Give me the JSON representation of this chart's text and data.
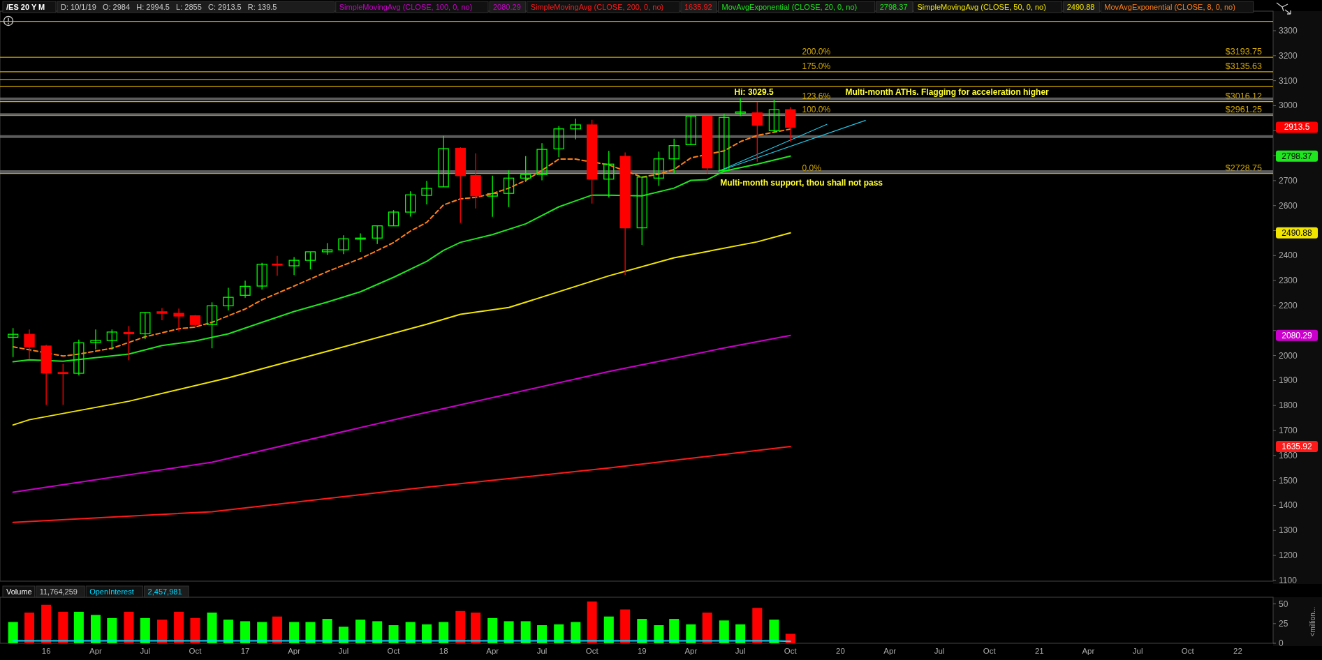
{
  "chart_data": [
    {
      "type": "candlestick",
      "title": "/ES 20 Y M",
      "legend": "top",
      "tick_labels": "y",
      "x": [
        "2015-11",
        "2015-12",
        "2016-01",
        "2016-02",
        "2016-03",
        "2016-04",
        "2016-05",
        "2016-06",
        "2016-07",
        "2016-08",
        "2016-09",
        "2016-10",
        "2016-11",
        "2016-12",
        "2017-01",
        "2017-02",
        "2017-03",
        "2017-04",
        "2017-05",
        "2017-06",
        "2017-07",
        "2017-08",
        "2017-09",
        "2017-10",
        "2017-11",
        "2017-12",
        "2018-01",
        "2018-02",
        "2018-03",
        "2018-04",
        "2018-05",
        "2018-06",
        "2018-07",
        "2018-08",
        "2018-09",
        "2018-10",
        "2018-11",
        "2018-12",
        "2019-01",
        "2019-02",
        "2019-03",
        "2019-04",
        "2019-05",
        "2019-06",
        "2019-07",
        "2019-08",
        "2019-09",
        "2019-10"
      ],
      "ohlc": [
        [
          2073,
          2110,
          1994,
          2085
        ],
        [
          2085,
          2104,
          1988,
          2035
        ],
        [
          2038,
          2043,
          1803,
          1930
        ],
        [
          1932,
          1967,
          1803,
          1929
        ],
        [
          1929,
          2064,
          1921,
          2051
        ],
        [
          2052,
          2104,
          2025,
          2060
        ],
        [
          2060,
          2104,
          2023,
          2094
        ],
        [
          2092,
          2118,
          1981,
          2087
        ],
        [
          2087,
          2172,
          2066,
          2172
        ],
        [
          2175,
          2190,
          2141,
          2169
        ],
        [
          2169,
          2188,
          2099,
          2158
        ],
        [
          2159,
          2162,
          2110,
          2124
        ],
        [
          2124,
          2213,
          2029,
          2199
        ],
        [
          2199,
          2271,
          2180,
          2233
        ],
        [
          2241,
          2300,
          2231,
          2277
        ],
        [
          2278,
          2371,
          2264,
          2365
        ],
        [
          2366,
          2399,
          2319,
          2362
        ],
        [
          2359,
          2394,
          2322,
          2381
        ],
        [
          2381,
          2415,
          2345,
          2415
        ],
        [
          2415,
          2450,
          2403,
          2423
        ],
        [
          2423,
          2481,
          2406,
          2467
        ],
        [
          2468,
          2489,
          2415,
          2470
        ],
        [
          2470,
          2519,
          2446,
          2519
        ],
        [
          2519,
          2582,
          2519,
          2574
        ],
        [
          2574,
          2657,
          2556,
          2643
        ],
        [
          2641,
          2699,
          2605,
          2669
        ],
        [
          2675,
          2879,
          2675,
          2828
        ],
        [
          2829,
          2834,
          2531,
          2720
        ],
        [
          2720,
          2809,
          2589,
          2639
        ],
        [
          2638,
          2720,
          2555,
          2648
        ],
        [
          2649,
          2741,
          2594,
          2710
        ],
        [
          2710,
          2798,
          2695,
          2724
        ],
        [
          2724,
          2850,
          2701,
          2825
        ],
        [
          2827,
          2918,
          2794,
          2907
        ],
        [
          2907,
          2948,
          2865,
          2923
        ],
        [
          2923,
          2943,
          2608,
          2706
        ],
        [
          2706,
          2819,
          2633,
          2766
        ],
        [
          2797,
          2813,
          2322,
          2511
        ],
        [
          2511,
          2714,
          2443,
          2714
        ],
        [
          2710,
          2816,
          2679,
          2787
        ],
        [
          2787,
          2868,
          2730,
          2840
        ],
        [
          2844,
          2958,
          2844,
          2958
        ],
        [
          2958,
          2958,
          2729,
          2751
        ],
        [
          2741,
          2968,
          2741,
          2953
        ],
        [
          2970,
          3029.5,
          2958,
          2975
        ],
        [
          2971,
          3015,
          2776,
          2922
        ],
        [
          2900,
          3024,
          2891,
          2984
        ],
        [
          2984,
          2994.5,
          2855,
          2913.5
        ]
      ],
      "value_labels": [
        null,
        null,
        null,
        null,
        null,
        null,
        null,
        null,
        null,
        null,
        null,
        null,
        null,
        null,
        null,
        null,
        null,
        null,
        null,
        null,
        null,
        null,
        null,
        null,
        null,
        null,
        null,
        null,
        null,
        null,
        null,
        null,
        null,
        null,
        null,
        null,
        null,
        null,
        null,
        null,
        null,
        null,
        null,
        null,
        null,
        null,
        null,
        "2913.5"
      ],
      "colors": [
        "#00ff00",
        "#ff0000",
        "#ff0000",
        "#ff0000",
        "#00ff00",
        "#00ff00",
        "#00ff00",
        "#ff0000",
        "#00ff00",
        "#ff0000",
        "#ff0000",
        "#ff0000",
        "#00ff00",
        "#00ff00",
        "#00ff00",
        "#00ff00",
        "#ff0000",
        "#00ff00",
        "#00ff00",
        "#00ff00",
        "#00ff00",
        "#00ff00",
        "#00ff00",
        "#00ff00",
        "#00ff00",
        "#00ff00",
        "#00ff00",
        "#ff0000",
        "#ff0000",
        "#00ff00",
        "#00ff00",
        "#00ff00",
        "#00ff00",
        "#00ff00",
        "#00ff00",
        "#ff0000",
        "#00ff00",
        "#ff0000",
        "#00ff00",
        "#00ff00",
        "#00ff00",
        "#00ff00",
        "#ff0000",
        "#00ff00",
        "#00ff00",
        "#ff0000",
        "#00ff00",
        "#ff0000"
      ],
      "series": [
        {
          "type": "line",
          "name": "SimpleMovingAvg (CLOSE, 100, 0, no)",
          "color": "#cc00cc",
          "x": [
            "2015-11",
            "2016-11",
            "2017-11",
            "2018-11",
            "2019-06",
            "2019-10"
          ],
          "values": [
            1453,
            1573,
            1758,
            1936,
            2030,
            2080.29
          ]
        },
        {
          "type": "line",
          "name": "SimpleMovingAvg (CLOSE, 200, 0, no)",
          "color": "#ff1a1a",
          "x": [
            "2015-11",
            "2016-11",
            "2017-11",
            "2018-11",
            "2019-10"
          ],
          "values": [
            1332,
            1375,
            1466,
            1550,
            1635.92
          ]
        },
        {
          "type": "line",
          "name": "MovAvgExponential (CLOSE, 20, 0, no)",
          "color": "#1fe61f",
          "x": [
            "2015-11",
            "2015-12",
            "2016-02",
            "2016-06",
            "2016-08",
            "2016-10",
            "2016-12",
            "2017-02",
            "2017-04",
            "2017-06",
            "2017-08",
            "2017-10",
            "2017-12",
            "2018-01",
            "2018-02",
            "2018-04",
            "2018-06",
            "2018-08",
            "2018-09",
            "2018-10",
            "2018-11",
            "2018-12",
            "2019-01",
            "2019-03",
            "2019-04",
            "2019-05",
            "2019-06",
            "2019-08",
            "2019-10"
          ],
          "values": [
            1975,
            1983,
            1977,
            2006,
            2040,
            2058,
            2087,
            2133,
            2176,
            2214,
            2255,
            2313,
            2377,
            2421,
            2453,
            2484,
            2527,
            2595,
            2619,
            2642,
            2642,
            null,
            2639,
            2670,
            2701,
            2704,
            2738,
            2766,
            2798.37
          ]
        },
        {
          "type": "line",
          "name": "SimpleMovingAvg (CLOSE, 50, 0, no)",
          "color": "#f2e600",
          "x": [
            "2015-11",
            "2015-12",
            "2016-06",
            "2016-12",
            "2017-06",
            "2017-12",
            "2018-02",
            "2018-05",
            "2018-11",
            "2019-03",
            "2019-08",
            "2019-10"
          ],
          "values": [
            1722,
            1743,
            1817,
            1911,
            2017,
            2125,
            2165,
            2192,
            2319,
            2391,
            2455,
            2490.88
          ]
        },
        {
          "type": "line",
          "name": "MovAvgExponential (CLOSE, 8, 0, no)",
          "color": "#ff7f1a",
          "line_style": "dashed",
          "x": [
            "2015-11",
            "2015-12",
            "2016-01",
            "2016-02",
            "2016-03",
            "2016-05",
            "2016-07",
            "2016-09",
            "2016-10",
            "2016-11",
            "2017-01",
            "2017-02",
            "2017-04",
            "2017-06",
            "2017-08",
            "2017-09",
            "2017-10",
            "2017-11",
            "2017-12",
            "2018-01",
            "2018-02",
            "2018-03",
            "2018-04",
            "2018-05",
            "2018-06",
            "2018-07",
            "2018-08",
            "2018-09",
            "2018-10",
            "2018-11",
            "2018-12",
            "2019-01",
            "2019-02",
            "2019-03",
            "2019-04",
            "2019-05",
            "2019-06",
            "2019-07",
            "2019-08",
            "2019-09",
            "2019-10"
          ],
          "values": [
            2035,
            null,
            null,
            1998,
            2006,
            2029,
            2075,
            2107,
            2114,
            2133,
            2186,
            2223,
            2278,
            2336,
            2388,
            2420,
            2452,
            2498,
            2533,
            2603,
            2627,
            2633,
            2648,
            2670,
            2701,
            2741,
            2786,
            2786,
            null,
            2763,
            null,
            2714,
            2726,
            2745,
            2791,
            null,
            2819,
            2856,
            2881,
            2894,
            2906
          ]
        },
        {
          "type": "line",
          "color": "#22c8e6",
          "x": [
            "2019-05-22",
            "2019-12-07"
          ],
          "values": [
            2738,
            2925
          ]
        },
        {
          "type": "line",
          "color": "#22c8e6",
          "x": [
            "2019-05-22",
            "2020-02-16"
          ],
          "values": [
            2738,
            2941
          ]
        }
      ],
      "xlim": [
        "2015-10-08",
        "2022-03-07"
      ],
      "ylim": [
        1097,
        3367
      ],
      "yticks": [
        1100,
        1200,
        1300,
        1400,
        1500,
        1600,
        1700,
        1800,
        1900,
        2000,
        {
          "value": 2100,
          "label": null
        },
        2200,
        2300,
        2400,
        {
          "value": 2500,
          "label": null
        },
        2600,
        2700,
        {
          "value": 2800,
          "label": null
        },
        {
          "value": 2900,
          "label": null
        },
        3000,
        3100,
        3200,
        3300
      ],
      "ref_lines": [
        {
          "axis": "y",
          "value": 3337.4
        },
        {
          "axis": "y",
          "value": 3193.75,
          "label": "$3193.75"
        },
        {
          "axis": "y",
          "value": 3135.63,
          "label": "$3135.63"
        },
        {
          "axis": "y",
          "value": 3104.9
        },
        {
          "axis": "y",
          "value": 3077.5
        },
        {
          "axis": "y",
          "value": 3016.12,
          "label": "$3016.12"
        },
        {
          "axis": "y",
          "value": 2961.25,
          "label": "$2961.25"
        },
        {
          "axis": "y",
          "value": 2728.75,
          "label": "$2728.75"
        },
        {
          "axis": "y",
          "value": 3027,
          "color": "#7a7a7a"
        },
        {
          "axis": "y",
          "value": 2964,
          "color": "#7a7a7a"
        },
        {
          "axis": "y",
          "value": 2876,
          "color": "#7a7a7a"
        },
        {
          "axis": "y",
          "value": 2736,
          "color": "#7a7a7a"
        }
      ],
      "subtitle": "D: 10/1/19   O: 2984   H: 2994.5   L: 2855   C: 2913.5   R: 139.5",
      "annotations": [
        "2080.29",
        "1635.92",
        "2798.37",
        "2490.88",
        {
          "text": "200.0%",
          "y": 3193.75
        },
        {
          "text": "175.0%",
          "y": 3135.63
        },
        {
          "text": "123.6%",
          "y": 3016.12
        },
        {
          "text": "100.0%",
          "y": 2961.25
        },
        {
          "text": "0.0%",
          "y": 2728.75
        },
        {
          "text": "Hi: 3029.5",
          "x": "2019-06-20",
          "y": 3029.5
        },
        {
          "text": "Multi-month ATHs. Flagging for acceleration higher",
          "x": "2020-01-10",
          "y": 3030
        },
        {
          "text": "Multi-month support, thou shall not pass",
          "x": "2019-05-25",
          "y": 2728.75
        }
      ]
    },
    {
      "type": "bar",
      "legend": "top left",
      "ylabel": "<million...",
      "x": [
        "2015-11",
        "2015-12",
        "2016-01",
        "2016-02",
        "2016-03",
        "2016-04",
        "2016-05",
        "2016-06",
        "2016-07",
        "2016-08",
        "2016-09",
        "2016-10",
        "2016-11",
        "2016-12",
        "2017-01",
        "2017-02",
        "2017-03",
        "2017-04",
        "2017-05",
        "2017-06",
        "2017-07",
        "2017-08",
        "2017-09",
        "2017-10",
        "2017-11",
        "2017-12",
        "2018-01",
        "2018-02",
        "2018-03",
        "2018-04",
        "2018-05",
        "2018-06",
        "2018-07",
        "2018-08",
        "2018-09",
        "2018-10",
        "2018-11",
        "2018-12",
        "2019-01",
        "2019-02",
        "2019-03",
        "2019-04",
        "2019-05",
        "2019-06",
        "2019-07",
        "2019-08",
        "2019-09",
        "2019-10"
      ],
      "series": [
        {
          "name": "Volume",
          "values": [
            27,
            39,
            49,
            40,
            40,
            36,
            32,
            40,
            32,
            30,
            40,
            32,
            39,
            30,
            28,
            27,
            34,
            27,
            27,
            31,
            21,
            30,
            28,
            23,
            27,
            24,
            27,
            41,
            39,
            32,
            28,
            28,
            23,
            24,
            27,
            53,
            34,
            43,
            31,
            23,
            31,
            24,
            39,
            29,
            24,
            45,
            30,
            12
          ],
          "colors": [
            "#00ff00",
            "#ff0000",
            "#ff0000",
            "#ff0000",
            "#00ff00",
            "#00ff00",
            "#00ff00",
            "#ff0000",
            "#00ff00",
            "#ff0000",
            "#ff0000",
            "#ff0000",
            "#00ff00",
            "#00ff00",
            "#00ff00",
            "#00ff00",
            "#ff0000",
            "#00ff00",
            "#00ff00",
            "#00ff00",
            "#00ff00",
            "#00ff00",
            "#00ff00",
            "#00ff00",
            "#00ff00",
            "#00ff00",
            "#00ff00",
            "#ff0000",
            "#ff0000",
            "#00ff00",
            "#00ff00",
            "#00ff00",
            "#00ff00",
            "#00ff00",
            "#00ff00",
            "#ff0000",
            "#00ff00",
            "#ff0000",
            "#00ff00",
            "#00ff00",
            "#00ff00",
            "#00ff00",
            "#ff0000",
            "#00ff00",
            "#00ff00",
            "#ff0000",
            "#00ff00",
            "#ff0000"
          ]
        },
        {
          "name": "OpenInterest",
          "type": "line",
          "color": "#00d8ff",
          "values": [
            3,
            3,
            3,
            3,
            3,
            3,
            3,
            3,
            3,
            3,
            3,
            3,
            3,
            3,
            3,
            3,
            3,
            3,
            3,
            3,
            3,
            3,
            3,
            3,
            3,
            3,
            3,
            3,
            3,
            3,
            3,
            3,
            3,
            3,
            3,
            3,
            3,
            3,
            3,
            3,
            3,
            3,
            3,
            3,
            3,
            3,
            3,
            2.5
          ]
        }
      ],
      "annotations": [
        "11,764,259",
        "2,457,981"
      ],
      "xlim": [
        "2015-10-08",
        "2022-03-07"
      ],
      "xticks": [
        {
          "value": "2016-01",
          "label": "16"
        },
        {
          "value": "2016-04",
          "label": "Apr"
        },
        {
          "value": "2016-07",
          "label": "Jul"
        },
        {
          "value": "2016-10",
          "label": "Oct"
        },
        {
          "value": "2017-01",
          "label": "17"
        },
        {
          "value": "2017-04",
          "label": "Apr"
        },
        {
          "value": "2017-07",
          "label": "Jul"
        },
        {
          "value": "2017-10",
          "label": "Oct"
        },
        {
          "value": "2018-01",
          "label": "18"
        },
        {
          "value": "2018-04",
          "label": "Apr"
        },
        {
          "value": "2018-07",
          "label": "Jul"
        },
        {
          "value": "2018-10",
          "label": "Oct"
        },
        {
          "value": "2019-01",
          "label": "19"
        },
        {
          "value": "2019-04",
          "label": "Apr"
        },
        {
          "value": "2019-07",
          "label": "Jul"
        },
        {
          "value": "2019-10",
          "label": "Oct"
        },
        {
          "value": "2020-01",
          "label": "20"
        },
        {
          "value": "2020-04",
          "label": "Apr"
        },
        {
          "value": "2020-07",
          "label": "Jul"
        },
        {
          "value": "2020-10",
          "label": "Oct"
        },
        {
          "value": "2021-01",
          "label": "21"
        },
        {
          "value": "2021-04",
          "label": "Apr"
        },
        {
          "value": "2021-07",
          "label": "Jul"
        },
        {
          "value": "2021-10",
          "label": "Oct"
        },
        {
          "value": "2022-01",
          "label": "22"
        }
      ],
      "ylim": [
        0,
        55
      ],
      "yticks": [
        0,
        25,
        50
      ]
    }
  ]
}
